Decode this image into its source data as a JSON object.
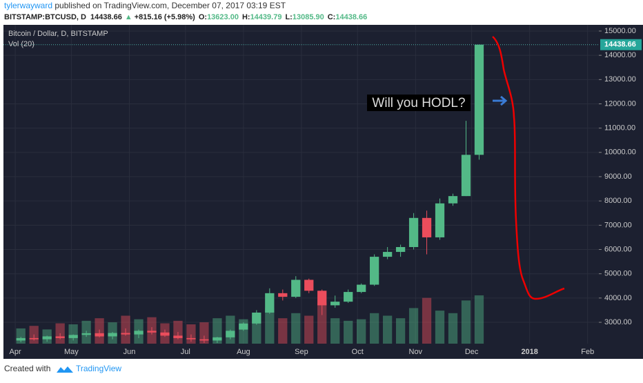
{
  "header": {
    "author": "tylerwayward",
    "published": "published on TradingView.com, December 07, 2017 03:19 EST",
    "symbol": "BITSTAMP:BTCUSD, D",
    "last": "14438.66",
    "change": "+815.16 (+5.98%)",
    "ohlc": [
      {
        "label": "O:",
        "value": "13623.00"
      },
      {
        "label": "H:",
        "value": "14439.79"
      },
      {
        "label": "L:",
        "value": "13085.90"
      },
      {
        "label": "C:",
        "value": "14438.66"
      }
    ]
  },
  "chart_data": {
    "type": "candlestick",
    "title": "Bitcoin / Dollar, D, BITSTAMP",
    "volume_label": "Vol (20)",
    "annotation": "Will you HODL?",
    "up_color": "#53b987",
    "down_color": "#eb4d5c",
    "grid": true,
    "x": [
      3,
      10,
      17,
      24,
      31,
      38,
      45,
      52,
      59,
      66,
      73,
      80,
      87,
      94,
      101,
      108,
      115,
      122,
      129,
      136,
      143,
      150,
      157,
      164,
      171,
      178,
      185,
      192,
      199,
      206,
      213,
      220,
      227,
      234,
      241,
      248
    ],
    "open": [
      2250,
      2350,
      2300,
      2420,
      2350,
      2480,
      2550,
      2420,
      2560,
      2500,
      2650,
      2580,
      2450,
      2350,
      2300,
      2250,
      2380,
      2700,
      2950,
      3400,
      4200,
      4050,
      4750,
      4300,
      3700,
      3850,
      4250,
      4550,
      5700,
      5900,
      6100,
      7300,
      6500,
      7900,
      8200,
      9900
    ],
    "high": [
      2400,
      2500,
      2450,
      2550,
      2500,
      2650,
      2700,
      2600,
      2750,
      2700,
      2800,
      2700,
      2600,
      2500,
      2450,
      2400,
      2700,
      3000,
      3500,
      4400,
      4350,
      4900,
      4800,
      4350,
      4100,
      4350,
      4600,
      5800,
      6100,
      6200,
      7500,
      7600,
      8100,
      8300,
      11300,
      14439.79
    ],
    "low": [
      2180,
      2250,
      2200,
      2300,
      2250,
      2400,
      2380,
      2300,
      2450,
      2350,
      2500,
      2400,
      2300,
      2200,
      2150,
      2150,
      2300,
      2650,
      2900,
      3350,
      3900,
      4000,
      4200,
      3300,
      3600,
      3800,
      4200,
      4500,
      5600,
      5700,
      6000,
      5800,
      6400,
      7800,
      8200,
      9700
    ],
    "close": [
      2350,
      2300,
      2420,
      2350,
      2480,
      2550,
      2420,
      2560,
      2500,
      2650,
      2580,
      2450,
      2350,
      2300,
      2250,
      2380,
      2650,
      2950,
      3400,
      4200,
      4050,
      4750,
      4300,
      3700,
      3850,
      4250,
      4550,
      5700,
      5900,
      6100,
      7300,
      6500,
      7900,
      8200,
      9900,
      14438.66
    ],
    "volume": [
      30,
      35,
      28,
      40,
      38,
      45,
      50,
      42,
      55,
      48,
      52,
      40,
      45,
      38,
      42,
      50,
      55,
      48,
      55,
      70,
      50,
      60,
      55,
      80,
      50,
      45,
      48,
      60,
      55,
      50,
      70,
      90,
      65,
      60,
      85,
      95
    ],
    "last_price": 14438.66,
    "ylim": [
      2120,
      15255
    ],
    "yticks": [
      {
        "value": 3000,
        "label": "3000.00"
      },
      {
        "value": 4000,
        "label": "4000.00"
      },
      {
        "value": 5000,
        "label": "5000.00"
      },
      {
        "value": 6000,
        "label": "6000.00"
      },
      {
        "value": 7000,
        "label": "7000.00"
      },
      {
        "value": 8000,
        "label": "8000.00"
      },
      {
        "value": 9000,
        "label": "9000.00"
      },
      {
        "value": 10000,
        "label": "10000.00"
      },
      {
        "value": 11000,
        "label": "11000.00"
      },
      {
        "value": 12000,
        "label": "12000.00"
      },
      {
        "value": 13000,
        "label": "13000.00"
      },
      {
        "value": 14000,
        "label": "14000.00"
      },
      {
        "value": 15000,
        "label": "15000.00"
      }
    ],
    "xlim": [
      -6.3,
      312
    ],
    "xticks": [
      {
        "value": 0,
        "label": "Apr"
      },
      {
        "value": 30,
        "label": "May"
      },
      {
        "value": 61,
        "label": "Jun"
      },
      {
        "value": 91,
        "label": "Jul"
      },
      {
        "value": 122,
        "label": "Aug"
      },
      {
        "value": 153,
        "label": "Sep"
      },
      {
        "value": 183,
        "label": "Oct"
      },
      {
        "value": 214,
        "label": "Nov"
      },
      {
        "value": 244,
        "label": "Dec"
      },
      {
        "value": 275,
        "label": "2018"
      },
      {
        "value": 306,
        "label": "Feb"
      }
    ]
  },
  "footer": {
    "created": "Created with",
    "brand": "TradingView"
  }
}
